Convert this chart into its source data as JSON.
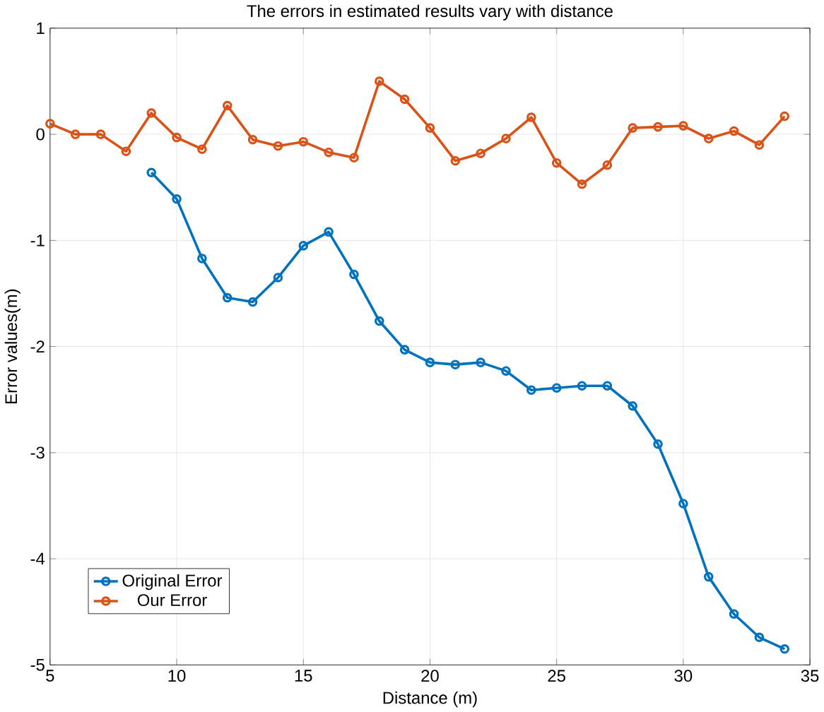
{
  "chart_data": {
    "type": "line",
    "title": "The errors in estimated results vary with distance",
    "xlabel": "Distance (m)",
    "ylabel": "Error values(m)",
    "xlim": [
      5,
      35
    ],
    "ylim": [
      -5,
      1
    ],
    "xticks": [
      5,
      10,
      15,
      20,
      25,
      30,
      35
    ],
    "yticks": [
      -5,
      -4,
      -3,
      -2,
      -1,
      0,
      1
    ],
    "grid": true,
    "legend": "bottom left",
    "marker": "circle",
    "line_style": "solid",
    "series": [
      {
        "name": "Original Error",
        "color": "#0072bd",
        "x": [
          9,
          10,
          11,
          12,
          13,
          14,
          15,
          16,
          17,
          18,
          19,
          20,
          21,
          22,
          23,
          24,
          25,
          26,
          27,
          28,
          29,
          30,
          31,
          32,
          33,
          34
        ],
        "values": [
          -0.36,
          -0.61,
          -1.17,
          -1.54,
          -1.58,
          -1.35,
          -1.05,
          -0.92,
          -1.32,
          -1.76,
          -2.03,
          -2.15,
          -2.17,
          -2.15,
          -2.23,
          -2.41,
          -2.39,
          -2.37,
          -2.37,
          -2.56,
          -2.92,
          -3.48,
          -4.17,
          -4.52,
          -4.74,
          -4.85
        ]
      },
      {
        "name": "Our Error",
        "color": "#d95319",
        "x": [
          5,
          6,
          7,
          8,
          9,
          10,
          11,
          12,
          13,
          14,
          15,
          16,
          17,
          18,
          19,
          20,
          21,
          22,
          23,
          24,
          25,
          26,
          27,
          28,
          29,
          30,
          31,
          32,
          33,
          34
        ],
        "values": [
          0.1,
          0,
          0,
          -0.16,
          0.2,
          -0.03,
          -0.14,
          0.27,
          -0.05,
          -0.11,
          -0.07,
          -0.17,
          -0.22,
          0.5,
          0.33,
          0.06,
          -0.25,
          -0.18,
          -0.04,
          0.16,
          -0.27,
          -0.47,
          -0.29,
          0.06,
          0.07,
          0.08,
          -0.04,
          0.03,
          -0.1,
          0.17
        ]
      }
    ]
  }
}
